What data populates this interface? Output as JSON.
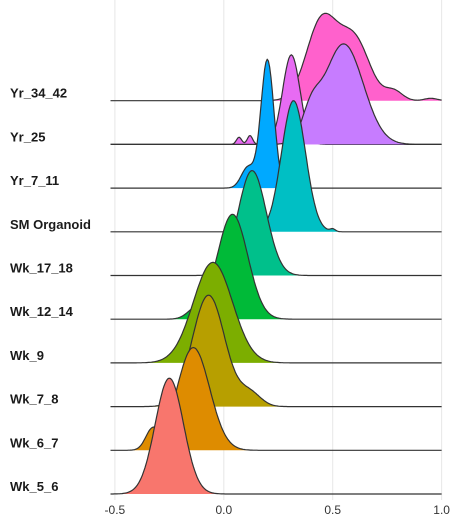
{
  "chart_data": {
    "type": "ridgeline",
    "title": "",
    "xlabel": "",
    "ylabel": "",
    "xlim": [
      -0.55,
      1.02
    ],
    "x_ticks": [
      {
        "value": -0.5,
        "label": "-0.5"
      },
      {
        "value": 0.0,
        "label": "0.0"
      },
      {
        "value": 0.5,
        "label": "0.5"
      },
      {
        "value": 1.0,
        "label": "1.0"
      }
    ],
    "grid": true,
    "legend": "none",
    "curve_range": [
      -0.52,
      1.0
    ],
    "series": [
      {
        "name": "Wk_5_6",
        "color": "#F8766D",
        "peak_height": 2.65,
        "components": [
          {
            "mu": -0.25,
            "sigma": 0.065,
            "w": 1.0
          }
        ]
      },
      {
        "name": "Wk_6_7",
        "color": "#DE8C00",
        "peak_height": 2.35,
        "components": [
          {
            "mu": -0.14,
            "sigma": 0.075,
            "w": 1.0
          },
          {
            "mu": -0.33,
            "sigma": 0.03,
            "w": 0.18
          }
        ]
      },
      {
        "name": "Wk_7_8",
        "color": "#B79F00",
        "peak_height": 2.55,
        "components": [
          {
            "mu": -0.07,
            "sigma": 0.075,
            "w": 1.0
          },
          {
            "mu": 0.12,
            "sigma": 0.05,
            "w": 0.12
          }
        ]
      },
      {
        "name": "Wk_9",
        "color": "#7CAE00",
        "peak_height": 2.3,
        "components": [
          {
            "mu": -0.05,
            "sigma": 0.09,
            "w": 1.0
          }
        ]
      },
      {
        "name": "Wk_12_14",
        "color": "#00BA38",
        "peak_height": 2.4,
        "components": [
          {
            "mu": 0.04,
            "sigma": 0.07,
            "w": 1.0
          },
          {
            "mu": -0.13,
            "sigma": 0.04,
            "w": 0.08
          }
        ]
      },
      {
        "name": "Wk_17_18",
        "color": "#00C08B",
        "peak_height": 2.4,
        "components": [
          {
            "mu": 0.13,
            "sigma": 0.065,
            "w": 1.0
          }
        ]
      },
      {
        "name": "SM Organoid",
        "color": "#00BFC4",
        "peak_height": 3.0,
        "components": [
          {
            "mu": 0.32,
            "sigma": 0.055,
            "w": 1.0
          },
          {
            "mu": 0.5,
            "sigma": 0.012,
            "w": 0.02
          }
        ]
      },
      {
        "name": "Yr_7_11",
        "color": "#00A9FF",
        "peak_height": 2.95,
        "components": [
          {
            "mu": 0.2,
            "sigma": 0.03,
            "w": 1.0
          },
          {
            "mu": 0.11,
            "sigma": 0.03,
            "w": 0.16
          }
        ]
      },
      {
        "name": "Yr_25",
        "color": "#C77CFF",
        "peak_height": 2.3,
        "components": [
          {
            "mu": 0.55,
            "sigma": 0.09,
            "w": 1.0
          },
          {
            "mu": 0.4,
            "sigma": 0.04,
            "w": 0.25
          }
        ]
      },
      {
        "name": "Yr_34_42",
        "color": "#FF61CC",
        "peak_height": 2.0,
        "components": [
          {
            "mu": 0.45,
            "sigma": 0.07,
            "w": 1.0
          },
          {
            "mu": 0.6,
            "sigma": 0.07,
            "w": 0.75
          },
          {
            "mu": 0.78,
            "sigma": 0.04,
            "w": 0.12
          },
          {
            "mu": 0.95,
            "sigma": 0.03,
            "w": 0.03
          }
        ]
      },
      {
        "name": "Yr_34_42",
        "color": "#E76BF3",
        "peak_height": 2.05,
        "overlay": true,
        "components": [
          {
            "mu": 0.31,
            "sigma": 0.04,
            "w": 1.0
          },
          {
            "mu": 0.07,
            "sigma": 0.012,
            "w": 0.08
          },
          {
            "mu": 0.12,
            "sigma": 0.012,
            "w": 0.1
          }
        ]
      }
    ]
  }
}
